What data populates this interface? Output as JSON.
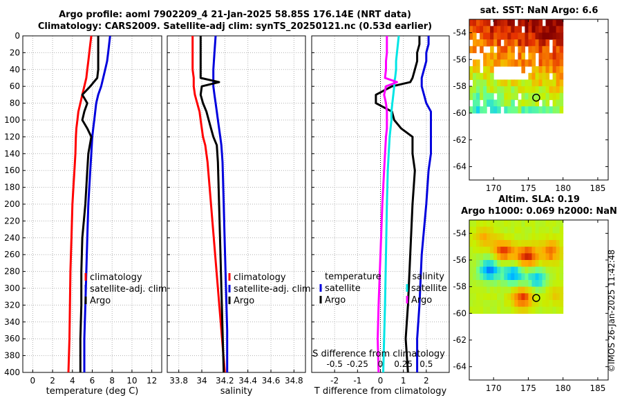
{
  "titles": {
    "line1": "Argo profile: aoml 7902209_4 21-Jan-2025 58.85S 176.14E (NRT data)",
    "line2": "Climatology: CARS2009. Satellite-adj clim: synTS_20250121.nc (0.53d earlier)",
    "sst_title": "sat. SST: NaN Argo: 6.6",
    "sla_title1": "Altim. SLA: 0.19",
    "sla_title2": "Argo h1000: 0.069 h2000: NaN"
  },
  "credit": "©IMOS 26-Jan-2025 11:42:48",
  "colors": {
    "climatology": "#ff0000",
    "satellite": "#0000dd",
    "argo": "#000000",
    "salinity_diff_sat": "#00e5e5",
    "salinity_diff_argo": "#ff00ff",
    "axis": "#000000",
    "grid": "#b0b0b0"
  },
  "chart_data": [
    {
      "id": "temperature",
      "type": "line",
      "xlabel": "temperature (deg C)",
      "ylabel": "",
      "xlim": [
        -1,
        13
      ],
      "ylim": [
        0,
        400
      ],
      "xticks": [
        0,
        2,
        4,
        6,
        8,
        10,
        12
      ],
      "yticks": [
        0,
        20,
        40,
        60,
        80,
        100,
        120,
        140,
        160,
        180,
        200,
        220,
        240,
        260,
        280,
        300,
        320,
        340,
        360,
        380,
        400
      ],
      "grid": true,
      "legend": [
        "climatology",
        "satellite-adj. clim",
        "Argo"
      ],
      "depth": [
        0,
        10,
        20,
        30,
        40,
        50,
        60,
        70,
        80,
        90,
        100,
        110,
        120,
        140,
        160,
        180,
        200,
        240,
        280,
        320,
        360,
        400
      ],
      "series": [
        {
          "name": "climatology",
          "values": [
            5.9,
            5.8,
            5.7,
            5.6,
            5.5,
            5.4,
            5.2,
            5.0,
            4.8,
            4.6,
            4.5,
            4.4,
            4.35,
            4.3,
            4.2,
            4.1,
            4.0,
            3.9,
            3.8,
            3.75,
            3.7,
            3.6
          ]
        },
        {
          "name": "satellite-adj. clim",
          "values": [
            7.8,
            7.7,
            7.6,
            7.5,
            7.3,
            7.1,
            6.9,
            6.6,
            6.4,
            6.3,
            6.2,
            6.1,
            6.0,
            5.9,
            5.8,
            5.7,
            5.6,
            5.5,
            5.4,
            5.3,
            5.2,
            5.2
          ]
        },
        {
          "name": "Argo",
          "values": [
            6.6,
            6.6,
            6.6,
            6.6,
            6.6,
            6.5,
            5.8,
            5.0,
            5.5,
            5.2,
            5.0,
            5.5,
            5.9,
            5.6,
            5.5,
            5.4,
            5.3,
            5.0,
            4.9,
            4.9,
            4.8,
            4.8
          ]
        }
      ]
    },
    {
      "id": "salinity",
      "type": "line",
      "xlabel": "salinity",
      "ylabel": "",
      "xlim": [
        33.7,
        34.9
      ],
      "ylim": [
        0,
        400
      ],
      "xticks": [
        33.8,
        34.0,
        34.2,
        34.4,
        34.6,
        34.8
      ],
      "xticklabels": [
        "33.8",
        "34",
        "34.2",
        "34.4",
        "34.6",
        "34.8"
      ],
      "yticks": [
        0,
        20,
        40,
        60,
        80,
        100,
        120,
        140,
        160,
        180,
        200,
        220,
        240,
        260,
        280,
        300,
        320,
        340,
        360,
        380,
        400
      ],
      "grid": true,
      "legend": [
        "climatology",
        "satellite-adj. clim",
        "Argo"
      ],
      "depth": [
        0,
        20,
        40,
        50,
        55,
        60,
        70,
        80,
        90,
        100,
        110,
        120,
        130,
        150,
        200,
        250,
        300,
        350,
        400
      ],
      "series": [
        {
          "name": "climatology",
          "values": [
            33.92,
            33.92,
            33.92,
            33.93,
            33.93,
            33.93,
            33.94,
            33.96,
            33.98,
            33.99,
            34.0,
            34.01,
            34.03,
            34.05,
            34.08,
            34.11,
            34.14,
            34.17,
            34.2
          ]
        },
        {
          "name": "satellite-adj. clim",
          "values": [
            34.12,
            34.11,
            34.1,
            34.1,
            34.1,
            34.1,
            34.11,
            34.12,
            34.13,
            34.14,
            34.15,
            34.16,
            34.17,
            34.18,
            34.19,
            34.2,
            34.21,
            34.22,
            34.22
          ]
        },
        {
          "name": "Argo",
          "values": [
            33.99,
            33.99,
            33.99,
            33.99,
            34.15,
            34.0,
            33.99,
            34.01,
            34.04,
            34.06,
            34.08,
            34.1,
            34.13,
            34.14,
            34.15,
            34.16,
            34.17,
            34.18,
            34.19
          ]
        }
      ]
    },
    {
      "id": "difference",
      "type": "line",
      "xlabel": "T difference from climatology",
      "xlabel_top": "S difference from climatology",
      "xlim": [
        -3,
        3
      ],
      "ylim": [
        0,
        400
      ],
      "xticks": [
        -2,
        -1,
        0,
        1,
        2
      ],
      "xticks_top": [
        -0.5,
        -0.25,
        0,
        0.25,
        0.5
      ],
      "xticklabels_top": [
        "-0.5",
        "-0.25",
        "0",
        "0.25",
        "0.5"
      ],
      "yticks": [
        0,
        20,
        40,
        60,
        80,
        100,
        120,
        140,
        160,
        180,
        200,
        220,
        240,
        260,
        280,
        300,
        320,
        340,
        360,
        380,
        400
      ],
      "grid": true,
      "legend_temperature": {
        "title": "temperature",
        "items": [
          "satellite",
          "Argo"
        ]
      },
      "legend_salinity": {
        "title": "salinity",
        "items": [
          "satellite",
          "Argo"
        ]
      },
      "depth": [
        0,
        10,
        20,
        30,
        40,
        50,
        55,
        60,
        70,
        80,
        90,
        100,
        110,
        120,
        140,
        160,
        200,
        260,
        320,
        360,
        400
      ],
      "series": [
        {
          "name": "T satellite",
          "values": [
            2.1,
            2.1,
            2.0,
            2.0,
            1.9,
            1.8,
            1.8,
            1.8,
            1.9,
            2.0,
            2.2,
            2.2,
            2.2,
            2.2,
            2.2,
            2.1,
            2.0,
            1.8,
            1.7,
            1.6,
            1.6
          ]
        },
        {
          "name": "T Argo",
          "values": [
            1.7,
            1.7,
            1.6,
            1.6,
            1.5,
            1.4,
            1.3,
            0.5,
            -0.2,
            -0.2,
            0.5,
            0.6,
            0.9,
            1.4,
            1.4,
            1.5,
            1.4,
            1.3,
            1.2,
            1.1,
            1.2
          ]
        },
        {
          "name": "S satellite",
          "values": [
            0.2,
            0.19,
            0.18,
            0.17,
            0.17,
            0.16,
            0.15,
            0.15,
            0.14,
            0.13,
            0.12,
            0.12,
            0.11,
            0.1,
            0.09,
            0.08,
            0.07,
            0.06,
            0.05,
            0.04,
            0.03
          ]
        },
        {
          "name": "S Argo",
          "values": [
            0.07,
            0.07,
            0.07,
            0.06,
            0.06,
            0.05,
            0.18,
            0.06,
            0.04,
            0.06,
            0.07,
            0.07,
            0.07,
            0.06,
            0.05,
            0.04,
            0.02,
            0.0,
            -0.02,
            -0.03,
            -0.02
          ]
        }
      ]
    },
    {
      "id": "sst_map",
      "type": "heatmap",
      "title": "sat. SST: NaN Argo: 6.6",
      "xlim": [
        166.5,
        186.5
      ],
      "ylim": [
        -65,
        -53
      ],
      "xticks": [
        170,
        175,
        180,
        185
      ],
      "yticks": [
        -54,
        -56,
        -58,
        -60,
        -62,
        -64
      ],
      "data_extent": {
        "lon": [
          166.5,
          180
        ],
        "lat": [
          -60,
          -53
        ]
      },
      "argo_position": {
        "lon": 176.14,
        "lat": -58.85
      }
    },
    {
      "id": "sla_map",
      "type": "heatmap",
      "title": "Altim. SLA: 0.19",
      "xlim": [
        166.5,
        186.5
      ],
      "ylim": [
        -65,
        -53
      ],
      "xticks": [
        170,
        175,
        180,
        185
      ],
      "yticks": [
        -54,
        -56,
        -58,
        -60,
        -62,
        -64
      ],
      "data_extent": {
        "lon": [
          166.5,
          180
        ],
        "lat": [
          -60,
          -53
        ]
      },
      "argo_position": {
        "lon": 176.14,
        "lat": -58.85
      }
    }
  ]
}
